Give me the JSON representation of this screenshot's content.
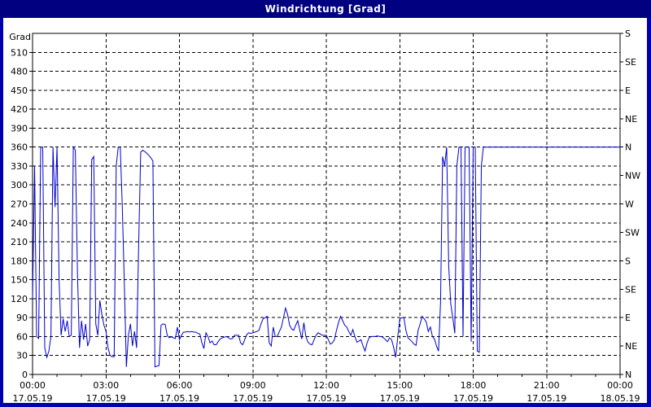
{
  "window": {
    "title": "Windrichtung [Grad]"
  },
  "colors": {
    "title_bar": "#000080",
    "title_text": "#ffffff",
    "window_border": "#0000b0",
    "plot_background": "#ffffff",
    "grid": "#000000",
    "axis": "#000000",
    "line": "#0000cc"
  },
  "chart_data": {
    "type": "line",
    "title": "Windrichtung [Grad]",
    "ylabel": "Grad",
    "grid": "dashed",
    "legend": "none",
    "y_axis_left": {
      "min": 0,
      "max": 540,
      "tick_step": 30,
      "tick_labels": [
        0,
        30,
        60,
        90,
        120,
        150,
        180,
        210,
        240,
        270,
        300,
        330,
        360,
        390,
        420,
        450,
        480,
        510
      ]
    },
    "y_axis_right": {
      "tick_step": 45,
      "labels_bottom_to_top": [
        "N",
        "NE",
        "E",
        "SE",
        "S",
        "SW",
        "W",
        "NW",
        "N",
        "NE",
        "E",
        "SE",
        "S"
      ]
    },
    "x_axis": {
      "range_hours": [
        0,
        24
      ],
      "major_tick_hours": 3,
      "minor_tick_hours": 1,
      "major_labels": [
        {
          "time": "00:00",
          "date": "17.05.19"
        },
        {
          "time": "03:00",
          "date": "17.05.19"
        },
        {
          "time": "06:00",
          "date": "17.05.19"
        },
        {
          "time": "09:00",
          "date": "17.05.19"
        },
        {
          "time": "12:00",
          "date": "17.05.19"
        },
        {
          "time": "15:00",
          "date": "17.05.19"
        },
        {
          "time": "18:00",
          "date": "17.05.19"
        },
        {
          "time": "21:00",
          "date": "17.05.19"
        },
        {
          "time": "00:00",
          "date": "18.05.19"
        }
      ]
    },
    "series": [
      {
        "name": "Windrichtung",
        "unit": "Grad",
        "color": "#0000cc",
        "start": "17.05.19 00:00",
        "sample_interval_minutes": 5,
        "values": [
          120,
          330,
          60,
          57,
          360,
          360,
          42,
          27,
          37,
          60,
          360,
          265,
          360,
          150,
          62,
          88,
          68,
          85,
          60,
          62,
          360,
          355,
          160,
          42,
          85,
          55,
          80,
          45,
          55,
          340,
          345,
          80,
          62,
          117,
          95,
          78,
          68,
          42,
          30,
          28,
          28,
          330,
          360,
          360,
          265,
          143,
          12,
          62,
          80,
          45,
          68,
          42,
          205,
          352,
          355,
          353,
          350,
          347,
          343,
          338,
          12,
          13,
          14,
          78,
          80,
          79,
          62,
          58,
          60,
          58,
          57,
          75,
          55,
          62,
          67,
          67,
          68,
          67,
          68,
          67,
          67,
          65,
          64,
          50,
          41,
          66,
          60,
          50,
          53,
          47,
          47,
          52,
          56,
          58,
          59,
          60,
          58,
          56,
          57,
          62,
          62,
          62,
          50,
          47,
          55,
          63,
          66,
          65,
          66,
          67,
          68,
          70,
          80,
          88,
          90,
          92,
          50,
          45,
          75,
          60,
          60,
          68,
          75,
          90,
          105,
          95,
          78,
          72,
          70,
          78,
          85,
          70,
          56,
          82,
          60,
          51,
          48,
          47,
          55,
          62,
          66,
          64,
          62,
          62,
          62,
          55,
          48,
          50,
          55,
          70,
          82,
          92,
          85,
          78,
          75,
          68,
          62,
          71,
          60,
          51,
          53,
          55,
          45,
          37,
          50,
          58,
          60,
          60,
          60,
          61,
          60,
          60,
          58,
          55,
          52,
          58,
          55,
          43,
          27,
          58,
          88,
          90,
          90,
          70,
          58,
          55,
          52,
          48,
          46,
          70,
          80,
          92,
          88,
          83,
          68,
          75,
          60,
          56,
          45,
          37,
          115,
          345,
          330,
          360,
          172,
          112,
          90,
          65,
          330,
          360,
          360,
          60,
          360,
          360,
          360,
          52,
          360,
          360,
          37,
          35,
          330,
          360,
          360,
          360,
          360,
          360,
          360,
          360,
          360,
          360,
          360,
          360,
          360,
          360,
          360,
          360,
          360,
          360,
          360,
          360,
          360,
          360,
          360,
          360,
          360,
          360,
          360,
          360,
          360,
          360,
          360,
          360,
          360,
          360,
          360,
          360,
          360,
          360,
          360,
          360,
          360,
          360,
          360,
          360,
          360,
          360,
          360,
          360,
          360,
          360,
          360,
          360,
          360,
          360,
          360,
          360,
          360,
          360,
          360,
          360,
          360,
          360,
          360,
          360,
          360,
          360,
          360,
          360,
          360
        ]
      }
    ]
  }
}
